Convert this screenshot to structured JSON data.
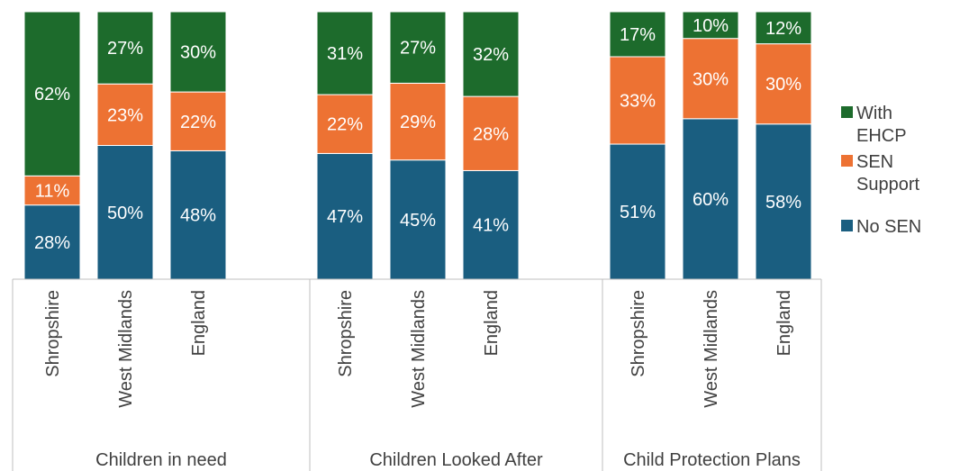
{
  "chart_data": {
    "type": "bar",
    "stacked": true,
    "stack_mode": "percent",
    "title": "",
    "xlabel": "",
    "ylabel": "",
    "ylim": [
      0,
      100
    ],
    "grid": false,
    "legend_position": "right",
    "groups": [
      {
        "label": "Children in need",
        "categories": [
          "Shropshire",
          "West Midlands",
          "England"
        ]
      },
      {
        "label": "Children Looked After",
        "categories": [
          "Shropshire",
          "West Midlands",
          "England"
        ]
      },
      {
        "label": "Child Protection Plans",
        "categories": [
          "Shropshire",
          "West Midlands",
          "England"
        ]
      }
    ],
    "series": [
      {
        "name": "No SEN",
        "color": "#1a5e80",
        "values": [
          28,
          50,
          48,
          47,
          45,
          41,
          51,
          60,
          58
        ],
        "labels": [
          "28%",
          "50%",
          "48%",
          "47%",
          "45%",
          "41%",
          "51%",
          "60%",
          "58%"
        ]
      },
      {
        "name": "SEN Support",
        "color": "#ed7233",
        "values": [
          11,
          23,
          22,
          22,
          29,
          28,
          33,
          30,
          30
        ],
        "labels": [
          "11%",
          "23%",
          "22%",
          "22%",
          "29%",
          "28%",
          "33%",
          "30%",
          "30%"
        ]
      },
      {
        "name": "With EHCP",
        "color": "#1d6b2c",
        "values": [
          62,
          27,
          30,
          31,
          27,
          32,
          17,
          10,
          12
        ],
        "labels": [
          "62%",
          "27%",
          "30%",
          "31%",
          "27%",
          "32%",
          "17%",
          "10%",
          "12%"
        ]
      }
    ],
    "legend": [
      {
        "lines": [
          "With",
          "EHCP"
        ],
        "color": "#1d6b2c"
      },
      {
        "lines": [
          "SEN",
          "Support"
        ],
        "color": "#ed7233"
      },
      {
        "lines": [
          "No SEN"
        ],
        "color": "#1a5e80"
      }
    ]
  }
}
